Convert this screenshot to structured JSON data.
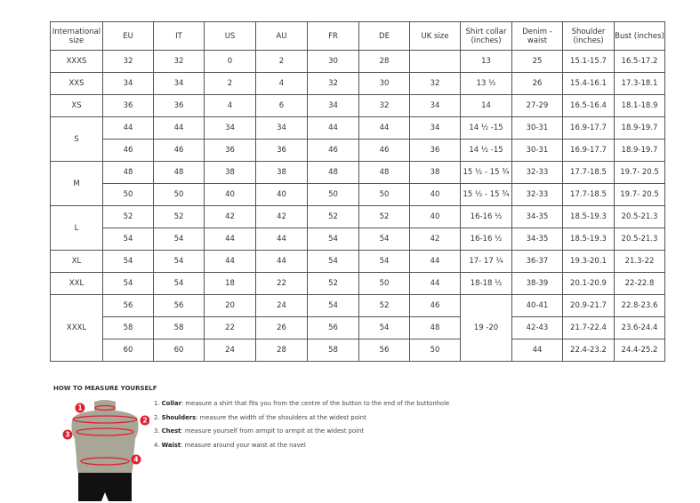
{
  "headers": [
    "International size",
    "EU",
    "IT",
    "US",
    "AU",
    "FR",
    "DE",
    "UK size",
    "Shirt collar (inches)",
    "Denim - waist",
    "Shoulder (inches)",
    "Bust (inches)"
  ],
  "groups": [
    {
      "size": "XXXS",
      "rows": [
        [
          "32",
          "32",
          "0",
          "2",
          "30",
          "28",
          "",
          "13",
          "25",
          "15.1-15.7",
          "16.5-17.2"
        ]
      ]
    },
    {
      "size": "XXS",
      "rows": [
        [
          "34",
          "34",
          "2",
          "4",
          "32",
          "30",
          "32",
          "13 ½",
          "26",
          "15.4-16.1",
          "17.3-18.1"
        ]
      ]
    },
    {
      "size": "XS",
      "rows": [
        [
          "36",
          "36",
          "4",
          "6",
          "34",
          "32",
          "34",
          "14",
          "27-29",
          "16.5-16.4",
          "18.1-18.9"
        ]
      ]
    },
    {
      "size": "S",
      "rows": [
        [
          "44",
          "44",
          "34",
          "34",
          "44",
          "44",
          "34",
          "14 ½ -15",
          "30-31",
          "16.9-17.7",
          "18.9-19.7"
        ],
        [
          "46",
          "46",
          "36",
          "36",
          "46",
          "46",
          "36",
          "14 ½ -15",
          "30-31",
          "16.9-17.7",
          "18.9-19.7"
        ]
      ]
    },
    {
      "size": "M",
      "rows": [
        [
          "48",
          "48",
          "38",
          "38",
          "48",
          "48",
          "38",
          "15 ½ - 15 ¾",
          "32-33",
          "17.7-18.5",
          "19.7- 20.5"
        ],
        [
          "50",
          "50",
          "40",
          "40",
          "50",
          "50",
          "40",
          "15 ½ - 15 ¾",
          "32-33",
          "17.7-18.5",
          "19.7- 20.5"
        ]
      ]
    },
    {
      "size": "L",
      "rows": [
        [
          "52",
          "52",
          "42",
          "42",
          "52",
          "52",
          "40",
          "16-16 ½",
          "34-35",
          "18.5-19.3",
          "20.5-21.3"
        ],
        [
          "54",
          "54",
          "44",
          "44",
          "54",
          "54",
          "42",
          "16-16 ½",
          "34-35",
          "18.5-19.3",
          "20.5-21.3"
        ]
      ]
    },
    {
      "size": "XL",
      "rows": [
        [
          "54",
          "54",
          "44",
          "44",
          "54",
          "54",
          "44",
          "17- 17 ¼",
          "36-37",
          "19.3-20.1",
          "21.3-22"
        ]
      ]
    },
    {
      "size": "XXL",
      "rows": [
        [
          "54",
          "54",
          "18",
          "22",
          "52",
          "50",
          "44",
          "18-18 ½",
          "38-39",
          "20.1-20.9",
          "22-22.8"
        ]
      ]
    },
    {
      "size": "XXXL",
      "rows": [
        [
          "56",
          "56",
          "20",
          "24",
          "54",
          "52",
          "46",
          "19 -20",
          "40-41",
          "20.9-21.7",
          "22.8-23.6"
        ],
        [
          "58",
          "58",
          "22",
          "26",
          "56",
          "54",
          "48",
          null,
          "42-43",
          "21.7-22.4",
          "23.6-24.4"
        ],
        [
          "60",
          "60",
          "24",
          "28",
          "58",
          "56",
          "50",
          null,
          "44",
          "22.4-23.2",
          "24.4-25.2"
        ]
      ]
    }
  ],
  "howto": {
    "title": "HOW TO MEASURE YOURSELF",
    "steps": [
      {
        "n": "1.",
        "term": "Collar",
        "text": ": measure a shirt that fits you from the centre of the button to the end of the buttonhole"
      },
      {
        "n": "2.",
        "term": "Shoulders",
        "text": ": measure the width of the shoulders at the widest point"
      },
      {
        "n": "3.",
        "term": "Chest",
        "text": ": measure yourself from armpit to armpit at the widest point"
      },
      {
        "n": "4.",
        "term": "Waist",
        "text": ": measure around your waist at the navel"
      }
    ],
    "markers": [
      "1",
      "2",
      "3",
      "4"
    ],
    "colors": {
      "marker": "#e0202e",
      "torso": "#a8a696",
      "shorts": "#111111"
    }
  }
}
